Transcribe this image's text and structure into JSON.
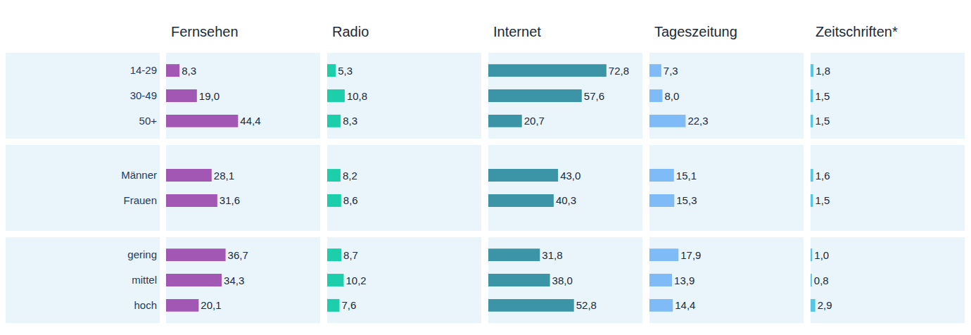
{
  "chart_data": [
    {
      "type": "bar",
      "orientation": "horizontal",
      "data_labels": true,
      "tick_labels": "y",
      "xlim": [
        0,
        95
      ],
      "xticks": [],
      "categories": [
        "14-29",
        "30-49",
        "50+"
      ],
      "series": [
        {
          "name": "Fernsehen",
          "color": "#a257b4",
          "values": [
            8.3,
            19.0,
            44.4
          ],
          "value_labels": [
            "8,3",
            "19,0",
            "44,4"
          ]
        },
        {
          "name": "Radio",
          "color": "#1ccfaa",
          "values": [
            5.3,
            10.8,
            8.3
          ],
          "value_labels": [
            "5,3",
            "10,8",
            "8,3"
          ]
        },
        {
          "name": "Internet",
          "color": "#3b95a6",
          "values": [
            72.8,
            57.6,
            20.7
          ],
          "value_labels": [
            "72,8",
            "57,6",
            "20,7"
          ]
        },
        {
          "name": "Tageszeitung",
          "color": "#7fbcf7",
          "values": [
            7.3,
            8.0,
            22.3
          ],
          "value_labels": [
            "7,3",
            "8,0",
            "22,3"
          ]
        },
        {
          "name": "Zeitschriften*",
          "color": "#56c6e6",
          "values": [
            1.8,
            1.5,
            1.5
          ],
          "value_labels": [
            "1,8",
            "1,5",
            "1,5"
          ]
        }
      ]
    },
    {
      "type": "bar",
      "orientation": "horizontal",
      "data_labels": true,
      "tick_labels": "y",
      "xlim": [
        0,
        95
      ],
      "xticks": [],
      "categories": [
        "Männer",
        "Frauen"
      ],
      "series": [
        {
          "name": "Fernsehen",
          "color": "#a257b4",
          "values": [
            28.1,
            31.6
          ],
          "value_labels": [
            "28,1",
            "31,6"
          ]
        },
        {
          "name": "Radio",
          "color": "#1ccfaa",
          "values": [
            8.2,
            8.6
          ],
          "value_labels": [
            "8,2",
            "8,6"
          ]
        },
        {
          "name": "Internet",
          "color": "#3b95a6",
          "values": [
            43.0,
            40.3
          ],
          "value_labels": [
            "43,0",
            "40,3"
          ]
        },
        {
          "name": "Tageszeitung",
          "color": "#7fbcf7",
          "values": [
            15.1,
            15.3
          ],
          "value_labels": [
            "15,1",
            "15,3"
          ]
        },
        {
          "name": "Zeitschriften*",
          "color": "#56c6e6",
          "values": [
            1.6,
            1.5
          ],
          "value_labels": [
            "1,6",
            "1,5"
          ]
        }
      ]
    },
    {
      "type": "bar",
      "orientation": "horizontal",
      "data_labels": true,
      "tick_labels": "y",
      "xlim": [
        0,
        95
      ],
      "xticks": [],
      "categories": [
        "gering",
        "mittel",
        "hoch"
      ],
      "series": [
        {
          "name": "Fernsehen",
          "color": "#a257b4",
          "values": [
            36.7,
            34.3,
            20.1
          ],
          "value_labels": [
            "36,7",
            "34,3",
            "20,1"
          ]
        },
        {
          "name": "Radio",
          "color": "#1ccfaa",
          "values": [
            8.7,
            10.2,
            7.6
          ],
          "value_labels": [
            "8,7",
            "10,2",
            "7,6"
          ]
        },
        {
          "name": "Internet",
          "color": "#3b95a6",
          "values": [
            31.8,
            38.0,
            52.8
          ],
          "value_labels": [
            "31,8",
            "38,0",
            "52,8"
          ]
        },
        {
          "name": "Tageszeitung",
          "color": "#7fbcf7",
          "values": [
            17.9,
            13.9,
            14.4
          ],
          "value_labels": [
            "17,9",
            "13,9",
            "14,4"
          ]
        },
        {
          "name": "Zeitschriften*",
          "color": "#56c6e6",
          "values": [
            1.0,
            0.8,
            2.9
          ],
          "value_labels": [
            "1,0",
            "0,8",
            "2,9"
          ]
        }
      ]
    }
  ]
}
